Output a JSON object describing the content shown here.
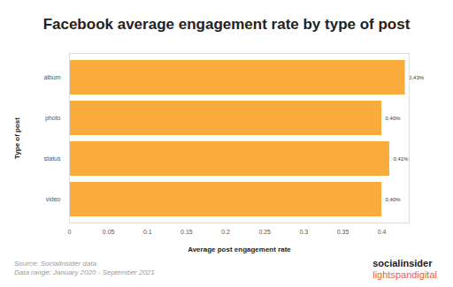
{
  "chart_data": {
    "type": "bar",
    "orientation": "horizontal",
    "title": "Facebook average engagement rate by type of post",
    "x_label": "Average post engagement rate",
    "y_label": "Type of post",
    "categories": [
      "album",
      "photo",
      "status",
      "video"
    ],
    "values": [
      0.43,
      0.4,
      0.41,
      0.4
    ],
    "value_labels": [
      "0,43%",
      "0,40%",
      "0,41%",
      "0,40%"
    ],
    "data_labels": true,
    "color": "#f9ab3b",
    "xlim": [
      0,
      0.435
    ],
    "xticks": [
      0,
      0.05,
      0.1,
      0.15,
      0.2,
      0.25,
      0.3,
      0.35,
      0.4
    ],
    "grid": false,
    "caption": [
      "Source: Socialinsider data",
      "Data range: January 2020 - September 2021"
    ],
    "logos": [
      "socialinsider",
      "lightspandigital"
    ]
  }
}
